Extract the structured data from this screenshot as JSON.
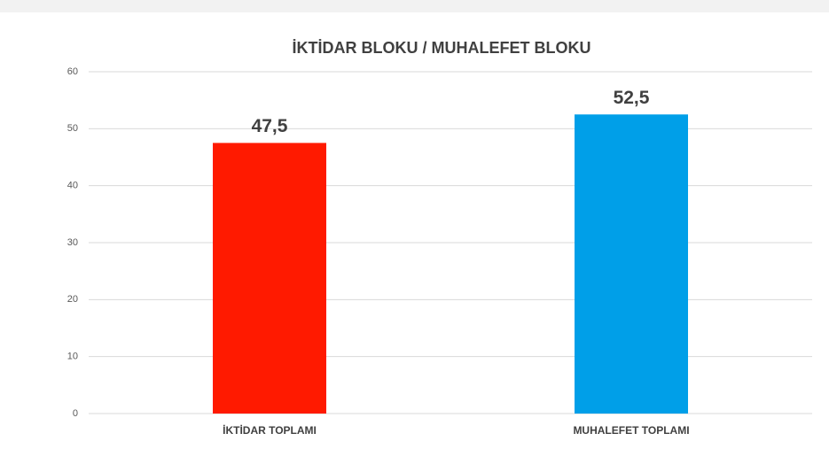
{
  "chart_data": {
    "type": "bar",
    "title": "İKTİDAR BLOKU / MUHALEFET BLOKU",
    "categories": [
      "İKTİDAR TOPLAMI",
      "MUHALEFET TOPLAMI"
    ],
    "values": [
      47.5,
      52.5
    ],
    "value_labels": [
      "47,5",
      "52,5"
    ],
    "colors": [
      "#ff1a00",
      "#009fe8"
    ],
    "ylim": [
      0,
      60
    ],
    "yticks": [
      0,
      10,
      20,
      30,
      40,
      50,
      60
    ],
    "grid": true
  }
}
